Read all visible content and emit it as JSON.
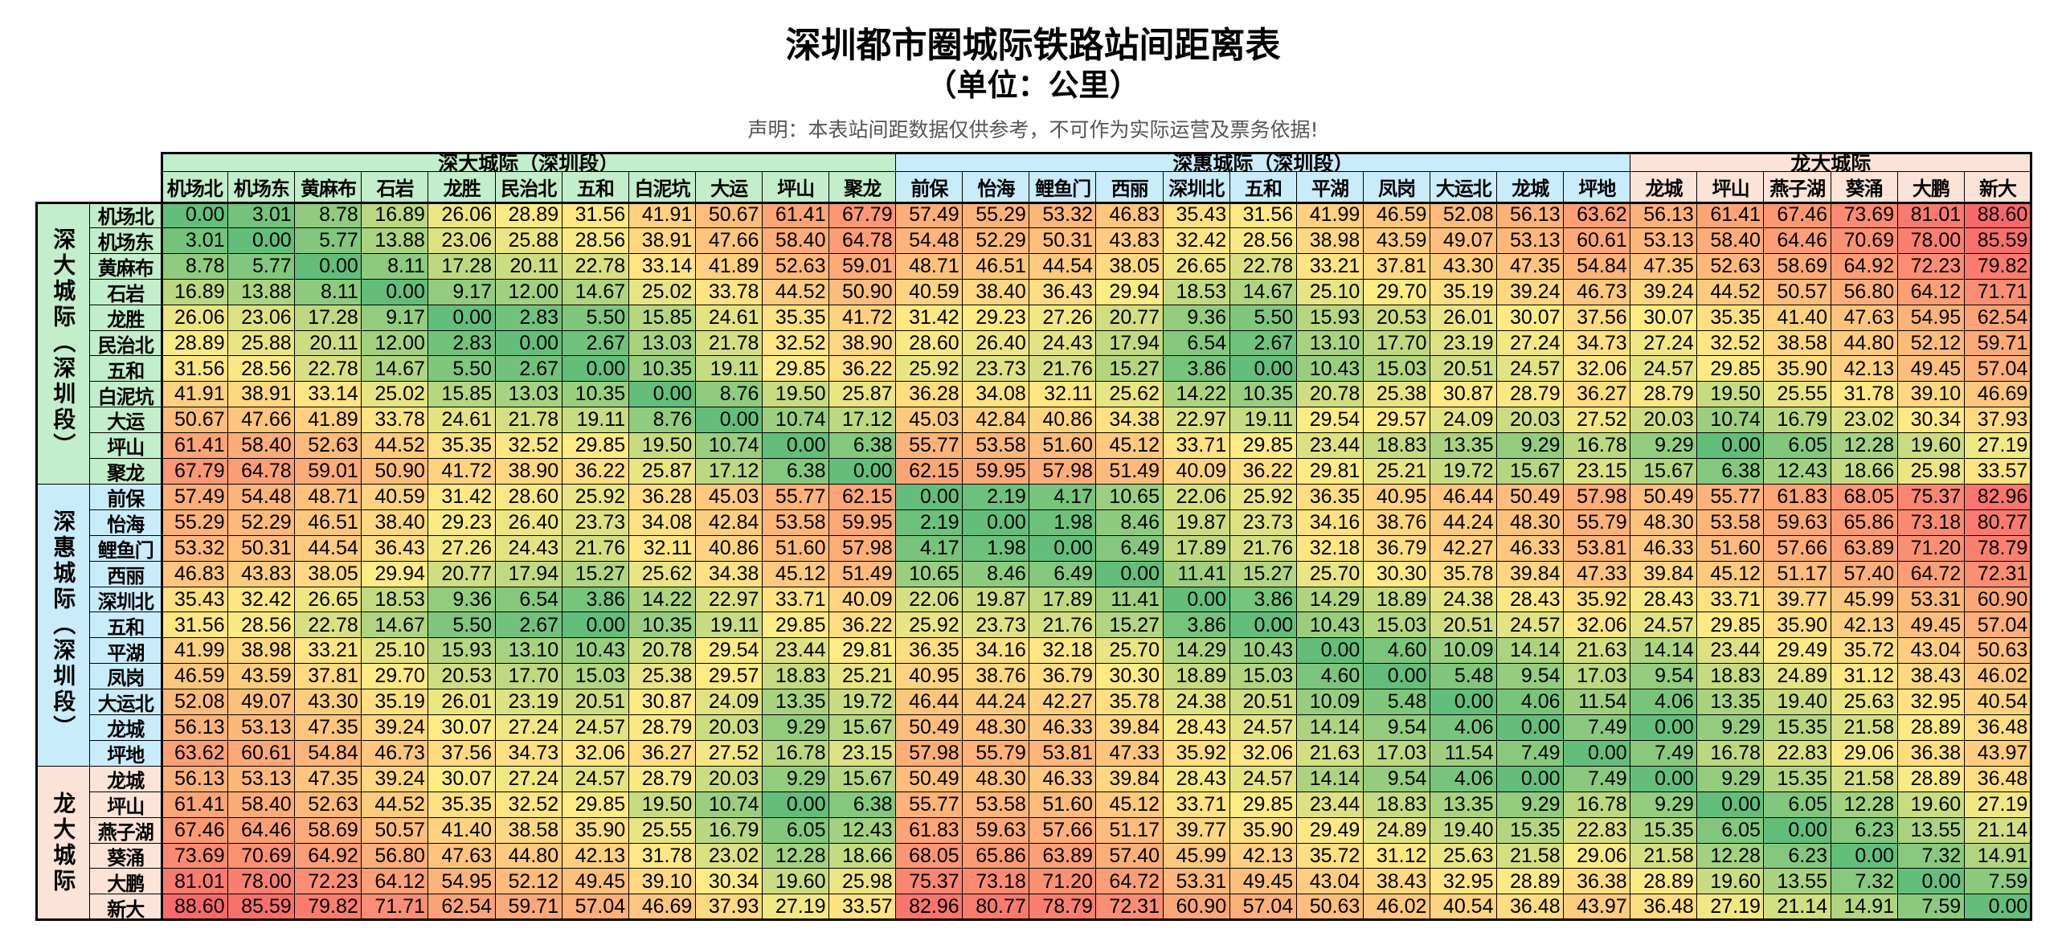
{
  "title": "深圳都市圈城际铁路站间距离表",
  "subtitle": "（单位：公里）",
  "disclaimer": "声明：本表站间距数据仅供参考，不可作为实际运营及票务依据!",
  "colors": {
    "min": "#63BE7B",
    "mid": "#FFEB84",
    "max": "#F8696B",
    "group_shenda": "#C2EECB",
    "group_shenhui": "#C9ECFB",
    "group_longda": "#FCE3D8"
  },
  "groups": [
    {
      "name": "深大城际（深圳段）",
      "color_key": "group_shenda",
      "stations": [
        "机场北",
        "机场东",
        "黄麻布",
        "石岩",
        "龙胜",
        "民治北",
        "五和",
        "白泥坑",
        "大运",
        "坪山",
        "聚龙"
      ]
    },
    {
      "name": "深惠城际（深圳段）",
      "color_key": "group_shenhui",
      "stations": [
        "前保",
        "怡海",
        "鲤鱼门",
        "西丽",
        "深圳北",
        "五和",
        "平湖",
        "凤岗",
        "大运北",
        "龙城",
        "坪地"
      ]
    },
    {
      "name": "龙大城际",
      "color_key": "group_longda",
      "stations": [
        "龙城",
        "坪山",
        "燕子湖",
        "葵涌",
        "大鹏",
        "新大"
      ]
    }
  ],
  "matrix": [
    [
      "0.00",
      "3.01",
      "8.78",
      "16.89",
      "26.06",
      "28.89",
      "31.56",
      "41.91",
      "50.67",
      "61.41",
      "67.79",
      "57.49",
      "55.29",
      "53.32",
      "46.83",
      "35.43",
      "31.56",
      "41.99",
      "46.59",
      "52.08",
      "56.13",
      "63.62",
      "56.13",
      "61.41",
      "67.46",
      "73.69",
      "81.01",
      "88.60"
    ],
    [
      "3.01",
      "0.00",
      "5.77",
      "13.88",
      "23.06",
      "25.88",
      "28.56",
      "38.91",
      "47.66",
      "58.40",
      "64.78",
      "54.48",
      "52.29",
      "50.31",
      "43.83",
      "32.42",
      "28.56",
      "38.98",
      "43.59",
      "49.07",
      "53.13",
      "60.61",
      "53.13",
      "58.40",
      "64.46",
      "70.69",
      "78.00",
      "85.59"
    ],
    [
      "8.78",
      "5.77",
      "0.00",
      "8.11",
      "17.28",
      "20.11",
      "22.78",
      "33.14",
      "41.89",
      "52.63",
      "59.01",
      "48.71",
      "46.51",
      "44.54",
      "38.05",
      "26.65",
      "22.78",
      "33.21",
      "37.81",
      "43.30",
      "47.35",
      "54.84",
      "47.35",
      "52.63",
      "58.69",
      "64.92",
      "72.23",
      "79.82"
    ],
    [
      "16.89",
      "13.88",
      "8.11",
      "0.00",
      "9.17",
      "12.00",
      "14.67",
      "25.02",
      "33.78",
      "44.52",
      "50.90",
      "40.59",
      "38.40",
      "36.43",
      "29.94",
      "18.53",
      "14.67",
      "25.10",
      "29.70",
      "35.19",
      "39.24",
      "46.73",
      "39.24",
      "44.52",
      "50.57",
      "56.80",
      "64.12",
      "71.71"
    ],
    [
      "26.06",
      "23.06",
      "17.28",
      "9.17",
      "0.00",
      "2.83",
      "5.50",
      "15.85",
      "24.61",
      "35.35",
      "41.72",
      "31.42",
      "29.23",
      "27.26",
      "20.77",
      "9.36",
      "5.50",
      "15.93",
      "20.53",
      "26.01",
      "30.07",
      "37.56",
      "30.07",
      "35.35",
      "41.40",
      "47.63",
      "54.95",
      "62.54"
    ],
    [
      "28.89",
      "25.88",
      "20.11",
      "12.00",
      "2.83",
      "0.00",
      "2.67",
      "13.03",
      "21.78",
      "32.52",
      "38.90",
      "28.60",
      "26.40",
      "24.43",
      "17.94",
      "6.54",
      "2.67",
      "13.10",
      "17.70",
      "23.19",
      "27.24",
      "34.73",
      "27.24",
      "32.52",
      "38.58",
      "44.80",
      "52.12",
      "59.71"
    ],
    [
      "31.56",
      "28.56",
      "22.78",
      "14.67",
      "5.50",
      "2.67",
      "0.00",
      "10.35",
      "19.11",
      "29.85",
      "36.22",
      "25.92",
      "23.73",
      "21.76",
      "15.27",
      "3.86",
      "0.00",
      "10.43",
      "15.03",
      "20.51",
      "24.57",
      "32.06",
      "24.57",
      "29.85",
      "35.90",
      "42.13",
      "49.45",
      "57.04"
    ],
    [
      "41.91",
      "38.91",
      "33.14",
      "25.02",
      "15.85",
      "13.03",
      "10.35",
      "0.00",
      "8.76",
      "19.50",
      "25.87",
      "36.28",
      "34.08",
      "32.11",
      "25.62",
      "14.22",
      "10.35",
      "20.78",
      "25.38",
      "30.87",
      "28.79",
      "36.27",
      "28.79",
      "19.50",
      "25.55",
      "31.78",
      "39.10",
      "46.69"
    ],
    [
      "50.67",
      "47.66",
      "41.89",
      "33.78",
      "24.61",
      "21.78",
      "19.11",
      "8.76",
      "0.00",
      "10.74",
      "17.12",
      "45.03",
      "42.84",
      "40.86",
      "34.38",
      "22.97",
      "19.11",
      "29.54",
      "29.57",
      "24.09",
      "20.03",
      "27.52",
      "20.03",
      "10.74",
      "16.79",
      "23.02",
      "30.34",
      "37.93"
    ],
    [
      "61.41",
      "58.40",
      "52.63",
      "44.52",
      "35.35",
      "32.52",
      "29.85",
      "19.50",
      "10.74",
      "0.00",
      "6.38",
      "55.77",
      "53.58",
      "51.60",
      "45.12",
      "33.71",
      "29.85",
      "23.44",
      "18.83",
      "13.35",
      "9.29",
      "16.78",
      "9.29",
      "0.00",
      "6.05",
      "12.28",
      "19.60",
      "27.19"
    ],
    [
      "67.79",
      "64.78",
      "59.01",
      "50.90",
      "41.72",
      "38.90",
      "36.22",
      "25.87",
      "17.12",
      "6.38",
      "0.00",
      "62.15",
      "59.95",
      "57.98",
      "51.49",
      "40.09",
      "36.22",
      "29.81",
      "25.21",
      "19.72",
      "15.67",
      "23.15",
      "15.67",
      "6.38",
      "12.43",
      "18.66",
      "25.98",
      "33.57"
    ],
    [
      "57.49",
      "54.48",
      "48.71",
      "40.59",
      "31.42",
      "28.60",
      "25.92",
      "36.28",
      "45.03",
      "55.77",
      "62.15",
      "0.00",
      "2.19",
      "4.17",
      "10.65",
      "22.06",
      "25.92",
      "36.35",
      "40.95",
      "46.44",
      "50.49",
      "57.98",
      "50.49",
      "55.77",
      "61.83",
      "68.05",
      "75.37",
      "82.96"
    ],
    [
      "55.29",
      "52.29",
      "46.51",
      "38.40",
      "29.23",
      "26.40",
      "23.73",
      "34.08",
      "42.84",
      "53.58",
      "59.95",
      "2.19",
      "0.00",
      "1.98",
      "8.46",
      "19.87",
      "23.73",
      "34.16",
      "38.76",
      "44.24",
      "48.30",
      "55.79",
      "48.30",
      "53.58",
      "59.63",
      "65.86",
      "73.18",
      "80.77"
    ],
    [
      "53.32",
      "50.31",
      "44.54",
      "36.43",
      "27.26",
      "24.43",
      "21.76",
      "32.11",
      "40.86",
      "51.60",
      "57.98",
      "4.17",
      "1.98",
      "0.00",
      "6.49",
      "17.89",
      "21.76",
      "32.18",
      "36.79",
      "42.27",
      "46.33",
      "53.81",
      "46.33",
      "51.60",
      "57.66",
      "63.89",
      "71.20",
      "78.79"
    ],
    [
      "46.83",
      "43.83",
      "38.05",
      "29.94",
      "20.77",
      "17.94",
      "15.27",
      "25.62",
      "34.38",
      "45.12",
      "51.49",
      "10.65",
      "8.46",
      "6.49",
      "0.00",
      "11.41",
      "15.27",
      "25.70",
      "30.30",
      "35.78",
      "39.84",
      "47.33",
      "39.84",
      "45.12",
      "51.17",
      "57.40",
      "64.72",
      "72.31"
    ],
    [
      "35.43",
      "32.42",
      "26.65",
      "18.53",
      "9.36",
      "6.54",
      "3.86",
      "14.22",
      "22.97",
      "33.71",
      "40.09",
      "22.06",
      "19.87",
      "17.89",
      "11.41",
      "0.00",
      "3.86",
      "14.29",
      "18.89",
      "24.38",
      "28.43",
      "35.92",
      "28.43",
      "33.71",
      "39.77",
      "45.99",
      "53.31",
      "60.90"
    ],
    [
      "31.56",
      "28.56",
      "22.78",
      "14.67",
      "5.50",
      "2.67",
      "0.00",
      "10.35",
      "19.11",
      "29.85",
      "36.22",
      "25.92",
      "23.73",
      "21.76",
      "15.27",
      "3.86",
      "0.00",
      "10.43",
      "15.03",
      "20.51",
      "24.57",
      "32.06",
      "24.57",
      "29.85",
      "35.90",
      "42.13",
      "49.45",
      "57.04"
    ],
    [
      "41.99",
      "38.98",
      "33.21",
      "25.10",
      "15.93",
      "13.10",
      "10.43",
      "20.78",
      "29.54",
      "23.44",
      "29.81",
      "36.35",
      "34.16",
      "32.18",
      "25.70",
      "14.29",
      "10.43",
      "0.00",
      "4.60",
      "10.09",
      "14.14",
      "21.63",
      "14.14",
      "23.44",
      "29.49",
      "35.72",
      "43.04",
      "50.63"
    ],
    [
      "46.59",
      "43.59",
      "37.81",
      "29.70",
      "20.53",
      "17.70",
      "15.03",
      "25.38",
      "29.57",
      "18.83",
      "25.21",
      "40.95",
      "38.76",
      "36.79",
      "30.30",
      "18.89",
      "15.03",
      "4.60",
      "0.00",
      "5.48",
      "9.54",
      "17.03",
      "9.54",
      "18.83",
      "24.89",
      "31.12",
      "38.43",
      "46.02"
    ],
    [
      "52.08",
      "49.07",
      "43.30",
      "35.19",
      "26.01",
      "23.19",
      "20.51",
      "30.87",
      "24.09",
      "13.35",
      "19.72",
      "46.44",
      "44.24",
      "42.27",
      "35.78",
      "24.38",
      "20.51",
      "10.09",
      "5.48",
      "0.00",
      "4.06",
      "11.54",
      "4.06",
      "13.35",
      "19.40",
      "25.63",
      "32.95",
      "40.54"
    ],
    [
      "56.13",
      "53.13",
      "47.35",
      "39.24",
      "30.07",
      "27.24",
      "24.57",
      "28.79",
      "20.03",
      "9.29",
      "15.67",
      "50.49",
      "48.30",
      "46.33",
      "39.84",
      "28.43",
      "24.57",
      "14.14",
      "9.54",
      "4.06",
      "0.00",
      "7.49",
      "0.00",
      "9.29",
      "15.35",
      "21.58",
      "28.89",
      "36.48"
    ],
    [
      "63.62",
      "60.61",
      "54.84",
      "46.73",
      "37.56",
      "34.73",
      "32.06",
      "36.27",
      "27.52",
      "16.78",
      "23.15",
      "57.98",
      "55.79",
      "53.81",
      "47.33",
      "35.92",
      "32.06",
      "21.63",
      "17.03",
      "11.54",
      "7.49",
      "0.00",
      "7.49",
      "16.78",
      "22.83",
      "29.06",
      "36.38",
      "43.97"
    ],
    [
      "56.13",
      "53.13",
      "47.35",
      "39.24",
      "30.07",
      "27.24",
      "24.57",
      "28.79",
      "20.03",
      "9.29",
      "15.67",
      "50.49",
      "48.30",
      "46.33",
      "39.84",
      "28.43",
      "24.57",
      "14.14",
      "9.54",
      "4.06",
      "0.00",
      "7.49",
      "0.00",
      "9.29",
      "15.35",
      "21.58",
      "28.89",
      "36.48"
    ],
    [
      "61.41",
      "58.40",
      "52.63",
      "44.52",
      "35.35",
      "32.52",
      "29.85",
      "19.50",
      "10.74",
      "0.00",
      "6.38",
      "55.77",
      "53.58",
      "51.60",
      "45.12",
      "33.71",
      "29.85",
      "23.44",
      "18.83",
      "13.35",
      "9.29",
      "16.78",
      "9.29",
      "0.00",
      "6.05",
      "12.28",
      "19.60",
      "27.19"
    ],
    [
      "67.46",
      "64.46",
      "58.69",
      "50.57",
      "41.40",
      "38.58",
      "35.90",
      "25.55",
      "16.79",
      "6.05",
      "12.43",
      "61.83",
      "59.63",
      "57.66",
      "51.17",
      "39.77",
      "35.90",
      "29.49",
      "24.89",
      "19.40",
      "15.35",
      "22.83",
      "15.35",
      "6.05",
      "0.00",
      "6.23",
      "13.55",
      "21.14"
    ],
    [
      "73.69",
      "70.69",
      "64.92",
      "56.80",
      "47.63",
      "44.80",
      "42.13",
      "31.78",
      "23.02",
      "12.28",
      "18.66",
      "68.05",
      "65.86",
      "63.89",
      "57.40",
      "45.99",
      "42.13",
      "35.72",
      "31.12",
      "25.63",
      "21.58",
      "29.06",
      "21.58",
      "12.28",
      "6.23",
      "0.00",
      "7.32",
      "14.91"
    ],
    [
      "81.01",
      "78.00",
      "72.23",
      "64.12",
      "54.95",
      "52.12",
      "49.45",
      "39.10",
      "30.34",
      "19.60",
      "25.98",
      "75.37",
      "73.18",
      "71.20",
      "64.72",
      "53.31",
      "49.45",
      "43.04",
      "38.43",
      "32.95",
      "28.89",
      "36.38",
      "28.89",
      "19.60",
      "13.55",
      "7.32",
      "0.00",
      "7.59"
    ],
    [
      "88.60",
      "85.59",
      "79.82",
      "71.71",
      "62.54",
      "59.71",
      "57.04",
      "46.69",
      "37.93",
      "27.19",
      "33.57",
      "82.96",
      "80.77",
      "78.79",
      "72.31",
      "60.90",
      "57.04",
      "50.63",
      "46.02",
      "40.54",
      "36.48",
      "43.97",
      "36.48",
      "27.19",
      "21.14",
      "14.91",
      "7.59",
      "0.00"
    ]
  ]
}
